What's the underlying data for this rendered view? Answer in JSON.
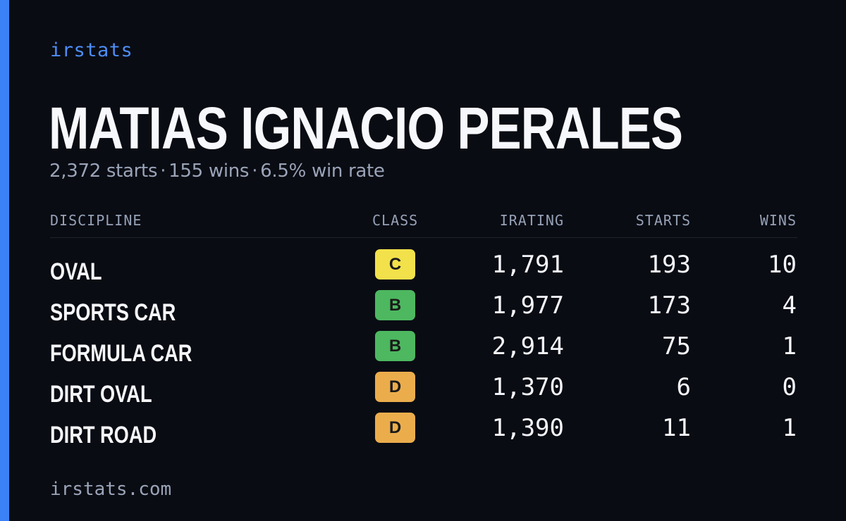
{
  "brand": "irstats",
  "driver": {
    "name": "MATIAS IGNACIO PERALES",
    "starts_text": "2,372 starts",
    "wins_text": "155 wins",
    "win_rate_text": "6.5% win rate",
    "separator": "·"
  },
  "table": {
    "headers": {
      "discipline": "DISCIPLINE",
      "class": "CLASS",
      "irating": "IRATING",
      "starts": "STARTS",
      "wins": "WINS"
    },
    "rows": [
      {
        "discipline": "OVAL",
        "class": "C",
        "class_color": "#f2e14a",
        "irating": "1,791",
        "starts": "193",
        "wins": "10"
      },
      {
        "discipline": "SPORTS CAR",
        "class": "B",
        "class_color": "#4db860",
        "irating": "1,977",
        "starts": "173",
        "wins": "4"
      },
      {
        "discipline": "FORMULA CAR",
        "class": "B",
        "class_color": "#4db860",
        "irating": "2,914",
        "starts": "75",
        "wins": "1"
      },
      {
        "discipline": "DIRT OVAL",
        "class": "D",
        "class_color": "#ebad4c",
        "irating": "1,370",
        "starts": "6",
        "wins": "0"
      },
      {
        "discipline": "DIRT ROAD",
        "class": "D",
        "class_color": "#ebad4c",
        "irating": "1,390",
        "starts": "11",
        "wins": "1"
      }
    ]
  },
  "footer": "irstats.com",
  "colors": {
    "accent": "#3b82f6",
    "background": "#0a0c13",
    "muted_text": "#9aa4b8"
  }
}
